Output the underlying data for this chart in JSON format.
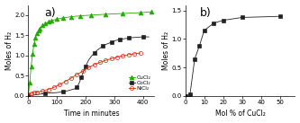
{
  "panel_a": {
    "label": "a)",
    "xlabel": "Time in minutes",
    "ylabel": "Moles of H₂",
    "xlim": [
      0,
      440
    ],
    "ylim": [
      0.0,
      2.25
    ],
    "yticks": [
      0.0,
      0.5,
      1.0,
      1.5,
      2.0
    ],
    "xticks": [
      0,
      100,
      200,
      300,
      400
    ],
    "CoCl2": {
      "time": [
        0,
        20,
        40,
        60,
        80,
        100,
        120,
        140,
        160,
        170,
        175,
        180,
        185,
        190,
        195,
        200,
        210,
        220,
        230,
        240,
        250,
        260,
        270,
        280,
        290,
        300,
        310,
        320,
        330,
        340,
        350,
        360,
        380,
        400,
        420
      ],
      "moles": [
        0.0,
        0.02,
        0.04,
        0.06,
        0.07,
        0.08,
        0.1,
        0.13,
        0.17,
        0.22,
        0.28,
        0.36,
        0.46,
        0.56,
        0.65,
        0.73,
        0.88,
        0.98,
        1.06,
        1.13,
        1.18,
        1.23,
        1.27,
        1.3,
        1.33,
        1.36,
        1.38,
        1.4,
        1.41,
        1.42,
        1.43,
        1.44,
        1.45,
        1.46,
        1.46
      ],
      "color": "#222222",
      "marker": "s",
      "markersize": 3.0,
      "label": "CoCl₂",
      "markevery": 3
    },
    "NiCl2": {
      "time": [
        0,
        10,
        20,
        30,
        50,
        70,
        90,
        110,
        130,
        150,
        170,
        190,
        210,
        230,
        250,
        270,
        290,
        310,
        330,
        350,
        370,
        390
      ],
      "moles": [
        0.04,
        0.06,
        0.08,
        0.09,
        0.12,
        0.16,
        0.21,
        0.28,
        0.36,
        0.44,
        0.53,
        0.61,
        0.7,
        0.77,
        0.83,
        0.88,
        0.92,
        0.96,
        0.99,
        1.02,
        1.04,
        1.06
      ],
      "color": "#dd2200",
      "marker": "o",
      "markersize": 3.0,
      "label": "NiCl₂",
      "markerfacecolor": "none",
      "markevery": 1
    },
    "CuCl2": {
      "time": [
        0,
        5,
        10,
        15,
        20,
        25,
        30,
        35,
        40,
        50,
        60,
        70,
        80,
        100,
        120,
        150,
        180,
        220,
        270,
        330,
        390,
        430
      ],
      "moles": [
        0.0,
        0.32,
        0.72,
        1.05,
        1.28,
        1.44,
        1.54,
        1.61,
        1.67,
        1.74,
        1.79,
        1.83,
        1.86,
        1.9,
        1.93,
        1.96,
        1.98,
        2.0,
        2.02,
        2.04,
        2.06,
        2.08
      ],
      "color": "#22aa00",
      "marker": "^",
      "markersize": 3.5,
      "label": "CuCl₂",
      "markevery": 1
    }
  },
  "panel_b": {
    "label": "b)",
    "xlabel": "Mol % of CuCl₂",
    "ylabel": "Moles of H₂",
    "xlim": [
      0,
      58
    ],
    "ylim": [
      0.0,
      1.6
    ],
    "yticks": [
      0.0,
      0.5,
      1.0,
      1.5
    ],
    "xticks": [
      0,
      10,
      20,
      30,
      40,
      50
    ],
    "x": [
      0,
      2.5,
      5,
      7.5,
      10,
      15,
      20,
      30,
      50
    ],
    "y": [
      0.0,
      0.02,
      0.65,
      0.88,
      1.15,
      1.28,
      1.33,
      1.38,
      1.4
    ],
    "color": "#222222",
    "marker": "s",
    "markersize": 3.0
  },
  "figure_bg": "#ffffff"
}
